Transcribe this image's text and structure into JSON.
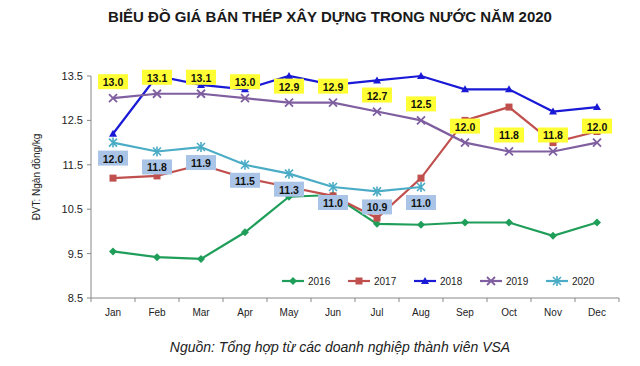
{
  "chart_data": {
    "type": "line",
    "title": "BIỂU ĐỒ GIÁ BÁN THÉP XÂY DỰNG TRONG NƯỚC NĂM 2020",
    "y_label": "ĐVT: Ngàn đồng/kg",
    "source": "Nguồn: Tổng hợp từ các doanh nghiệp thành viên VSA",
    "categories": [
      "Jan",
      "Feb",
      "Mar",
      "Apr",
      "May",
      "Jun",
      "Jul",
      "Aug",
      "Sep",
      "Oct",
      "Nov",
      "Dec"
    ],
    "ylim": [
      8.5,
      13.5
    ],
    "yticks": [
      8.5,
      9.5,
      10.5,
      11.5,
      12.5,
      13.5
    ],
    "grid": false,
    "legend": "bottom",
    "series": [
      {
        "name": "2016",
        "color": "#1f9e5a",
        "marker": "diamond",
        "values": [
          9.55,
          9.42,
          9.38,
          9.98,
          10.78,
          10.82,
          10.17,
          10.15,
          10.2,
          10.2,
          9.9,
          10.2
        ]
      },
      {
        "name": "2017",
        "color": "#c0504d",
        "marker": "square",
        "values": [
          11.2,
          11.25,
          11.5,
          11.2,
          11.0,
          10.8,
          10.3,
          11.2,
          12.5,
          12.8,
          12.0,
          12.25
        ]
      },
      {
        "name": "2018",
        "color": "#1a1ad6",
        "marker": "triangle",
        "values": [
          12.2,
          13.5,
          13.3,
          13.2,
          13.5,
          13.3,
          13.4,
          13.5,
          13.2,
          13.2,
          12.7,
          12.8
        ]
      },
      {
        "name": "2019",
        "color": "#7f5fa0",
        "marker": "x",
        "data_labels": true,
        "values": [
          13.0,
          13.1,
          13.1,
          13.0,
          12.9,
          12.9,
          12.7,
          12.5,
          12.0,
          11.8,
          11.8,
          12.0
        ],
        "value_labels": [
          "13.0",
          "13.1",
          "13.1",
          "13.0",
          "12.9",
          "12.9",
          "12.7",
          "12.5",
          "12.0",
          "11.8",
          "11.8",
          "12.0"
        ]
      },
      {
        "name": "2020",
        "color": "#4bacc6",
        "marker": "star",
        "data_labels": true,
        "values": [
          12.0,
          11.8,
          11.9,
          11.5,
          11.3,
          11.0,
          10.9,
          11.0,
          null,
          null,
          null,
          null
        ],
        "value_labels": [
          "12.0",
          "11.8",
          "11.9",
          "11.5",
          "11.3",
          "11.0",
          "10.9",
          "11.0",
          null,
          null,
          null,
          null
        ]
      }
    ]
  }
}
